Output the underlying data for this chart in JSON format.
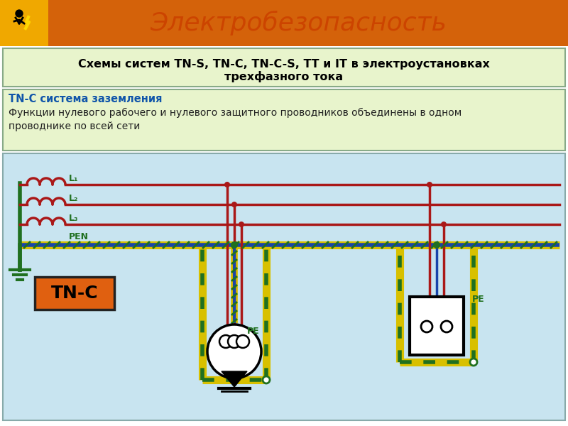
{
  "title": "Электробезопасность",
  "subtitle_line1": "Схемы систем TN-S, TN-C, TN-C-S, ТТ и IT в электроустановках",
  "subtitle_line2": "трехфазного тока",
  "info_bold": "TN-C система заземления",
  "info_text1": "Функции нулевого рабочего и нулевого защитного проводников объединены в одном",
  "info_text2": "проводнике по всей сети",
  "label_tnc": "TN-C",
  "label_pen": "PEN",
  "label_l1": "L₁",
  "label_l2": "L₂",
  "label_l3": "L₃",
  "label_pe1": "PE",
  "label_pe2": "PE",
  "header_bg": "#D4620A",
  "icon_bg": "#F0A800",
  "title_color": "#CC4400",
  "subtitle_bg": "#E8F4CC",
  "info_bg": "#E8F4CC",
  "diagram_bg": "#C8E4F0",
  "orange_box": "#E06010",
  "wire_red": "#AA1818",
  "wire_blue": "#1844AA",
  "wire_green": "#207020",
  "pen_yellow": "#D8C000",
  "pen_green": "#207020",
  "black": "#000000",
  "white": "#FFFFFF",
  "figsize": [
    8.0,
    6.0
  ],
  "dpi": 100
}
